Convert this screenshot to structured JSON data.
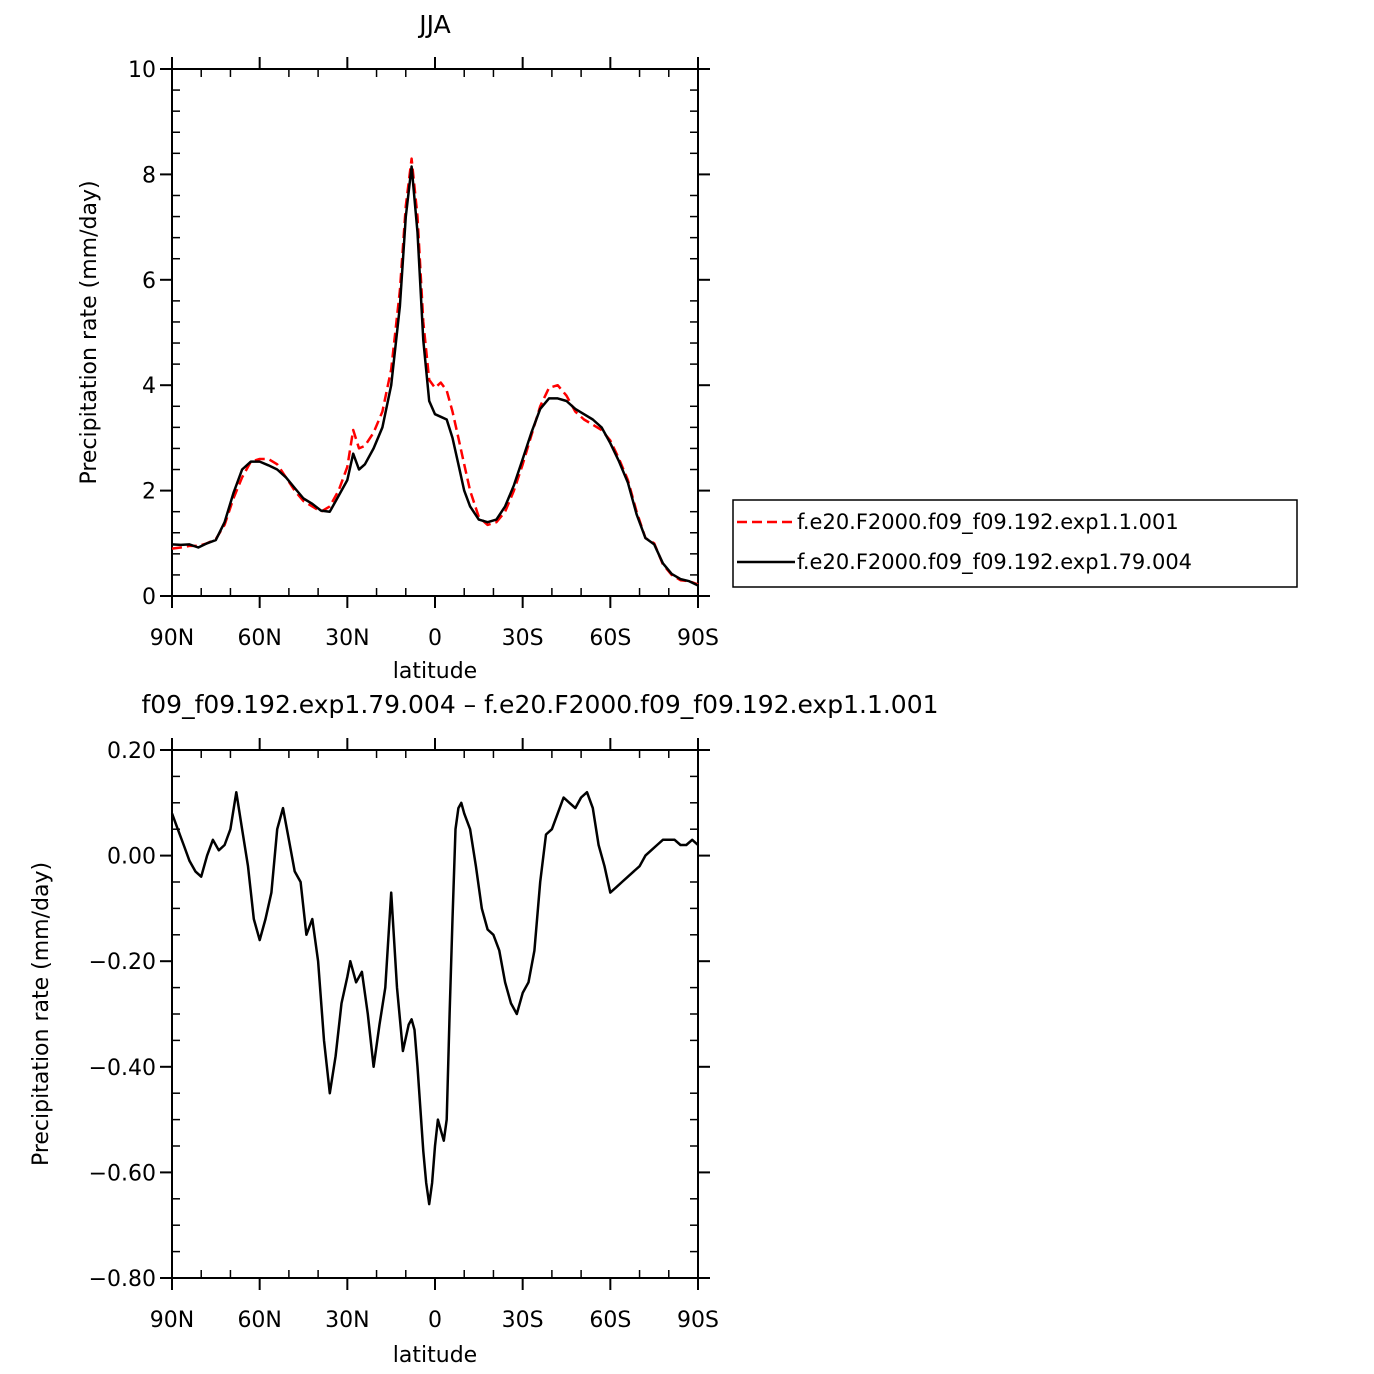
{
  "chart_data": [
    {
      "type": "line",
      "title": "JJA",
      "xlabel": "latitude",
      "ylabel": "Precipitation rate (mm/day)",
      "x_tick_labels": [
        "90N",
        "60N",
        "30N",
        "0",
        "30S",
        "60S",
        "90S"
      ],
      "x_tick_values": [
        -90,
        -60,
        -30,
        0,
        30,
        60,
        90
      ],
      "xlim": [
        -90,
        90
      ],
      "y_tick_labels": [
        "0",
        "2",
        "4",
        "6",
        "8",
        "10"
      ],
      "y_tick_values": [
        0,
        2,
        4,
        6,
        8,
        10
      ],
      "ylim": [
        0,
        10
      ],
      "legend_position": "right",
      "x": [
        -90,
        -87,
        -84,
        -81,
        -78,
        -75,
        -72,
        -69,
        -66,
        -63,
        -60,
        -57,
        -54,
        -51,
        -48,
        -45,
        -42,
        -39,
        -36,
        -33,
        -30,
        -28,
        -26,
        -24,
        -21,
        -18,
        -15,
        -12,
        -10,
        -8,
        -6,
        -4,
        -2,
        0,
        2,
        4,
        6,
        8,
        10,
        12,
        15,
        18,
        21,
        24,
        27,
        30,
        33,
        36,
        39,
        42,
        45,
        48,
        51,
        54,
        57,
        60,
        63,
        66,
        69,
        72,
        75,
        78,
        81,
        84,
        87,
        90
      ],
      "series": [
        {
          "name": "f.e20.F2000.f09_f09.192.exp1.1.001",
          "color": "#ff0000",
          "dash": "dashed",
          "values": [
            0.9,
            0.92,
            0.95,
            0.95,
            1.0,
            1.08,
            1.35,
            1.85,
            2.25,
            2.55,
            2.6,
            2.6,
            2.5,
            2.25,
            2.0,
            1.8,
            1.7,
            1.6,
            1.7,
            2.0,
            2.45,
            3.15,
            2.8,
            2.85,
            3.1,
            3.5,
            4.3,
            5.8,
            7.4,
            8.3,
            7.2,
            5.2,
            4.1,
            3.95,
            4.05,
            3.9,
            3.5,
            3.0,
            2.5,
            2.0,
            1.5,
            1.35,
            1.4,
            1.6,
            2.0,
            2.5,
            3.05,
            3.6,
            3.95,
            4.0,
            3.8,
            3.5,
            3.35,
            3.25,
            3.15,
            2.95,
            2.6,
            2.2,
            1.6,
            1.1,
            1.0,
            0.6,
            0.4,
            0.3,
            0.28,
            0.22
          ]
        },
        {
          "name": "f.e20.F2000.f09_f09.192.exp1.79.004",
          "color": "#000000",
          "dash": "solid",
          "values": [
            0.98,
            0.97,
            0.98,
            0.92,
            1.0,
            1.06,
            1.4,
            1.95,
            2.4,
            2.55,
            2.55,
            2.48,
            2.4,
            2.25,
            2.05,
            1.85,
            1.75,
            1.62,
            1.6,
            1.9,
            2.2,
            2.7,
            2.4,
            2.5,
            2.8,
            3.2,
            4.0,
            5.5,
            7.2,
            8.15,
            6.9,
            4.85,
            3.7,
            3.45,
            3.4,
            3.35,
            3.0,
            2.5,
            2.0,
            1.7,
            1.45,
            1.4,
            1.45,
            1.7,
            2.1,
            2.6,
            3.1,
            3.55,
            3.75,
            3.75,
            3.7,
            3.55,
            3.45,
            3.35,
            3.2,
            2.9,
            2.55,
            2.15,
            1.55,
            1.1,
            0.98,
            0.62,
            0.42,
            0.32,
            0.28,
            0.2
          ]
        }
      ]
    },
    {
      "type": "line",
      "title": "f09_f09.192.exp1.79.004 – f.e20.F2000.f09_f09.192.exp1.1.001",
      "xlabel": "latitude",
      "ylabel": "Precipitation rate (mm/day)",
      "x_tick_labels": [
        "90N",
        "60N",
        "30N",
        "0",
        "30S",
        "60S",
        "90S"
      ],
      "x_tick_values": [
        -90,
        -60,
        -30,
        0,
        30,
        60,
        90
      ],
      "xlim": [
        -90,
        90
      ],
      "y_tick_labels": [
        "−0.80",
        "−0.60",
        "−0.40",
        "−0.20",
        "0.00",
        "0.20"
      ],
      "y_tick_values": [
        -0.8,
        -0.6,
        -0.4,
        -0.2,
        0.0,
        0.2
      ],
      "ylim": [
        -0.8,
        0.2
      ],
      "x": [
        -90,
        -88,
        -86,
        -84,
        -82,
        -80,
        -78,
        -76,
        -74,
        -72,
        -70,
        -68,
        -66,
        -64,
        -62,
        -60,
        -58,
        -56,
        -54,
        -52,
        -50,
        -48,
        -46,
        -44,
        -42,
        -40,
        -38,
        -36,
        -34,
        -32,
        -30,
        -29,
        -27,
        -25,
        -23,
        -21,
        -19,
        -17,
        -15,
        -13,
        -11,
        -9,
        -8,
        -7,
        -6,
        -5,
        -4,
        -3,
        -2,
        -1,
        0,
        1,
        2,
        3,
        4,
        5,
        6,
        7,
        8,
        9,
        10,
        12,
        14,
        16,
        18,
        20,
        22,
        24,
        26,
        28,
        30,
        32,
        34,
        36,
        38,
        40,
        42,
        44,
        46,
        48,
        50,
        52,
        54,
        56,
        58,
        60,
        62,
        64,
        66,
        68,
        70,
        72,
        74,
        76,
        78,
        80,
        82,
        84,
        86,
        88,
        90
      ],
      "series": [
        {
          "name": "",
          "color": "#000000",
          "dash": "solid",
          "values": [
            0.08,
            0.05,
            0.02,
            -0.01,
            -0.03,
            -0.04,
            0.0,
            0.03,
            0.01,
            0.02,
            0.05,
            0.12,
            0.05,
            -0.02,
            -0.12,
            -0.16,
            -0.12,
            -0.07,
            0.05,
            0.09,
            0.03,
            -0.03,
            -0.05,
            -0.15,
            -0.12,
            -0.2,
            -0.35,
            -0.45,
            -0.38,
            -0.28,
            -0.23,
            -0.2,
            -0.24,
            -0.22,
            -0.3,
            -0.4,
            -0.32,
            -0.25,
            -0.07,
            -0.25,
            -0.37,
            -0.32,
            -0.31,
            -0.33,
            -0.4,
            -0.48,
            -0.56,
            -0.62,
            -0.66,
            -0.62,
            -0.55,
            -0.5,
            -0.52,
            -0.54,
            -0.5,
            -0.3,
            -0.12,
            0.05,
            0.09,
            0.1,
            0.08,
            0.05,
            -0.02,
            -0.1,
            -0.14,
            -0.15,
            -0.18,
            -0.24,
            -0.28,
            -0.3,
            -0.26,
            -0.24,
            -0.18,
            -0.05,
            0.04,
            0.05,
            0.08,
            0.11,
            0.1,
            0.09,
            0.11,
            0.12,
            0.09,
            0.02,
            -0.02,
            -0.07,
            -0.06,
            -0.05,
            -0.04,
            -0.03,
            -0.02,
            0.0,
            0.01,
            0.02,
            0.03,
            0.03,
            0.03,
            0.02,
            0.02,
            0.03,
            0.02
          ]
        }
      ]
    }
  ]
}
